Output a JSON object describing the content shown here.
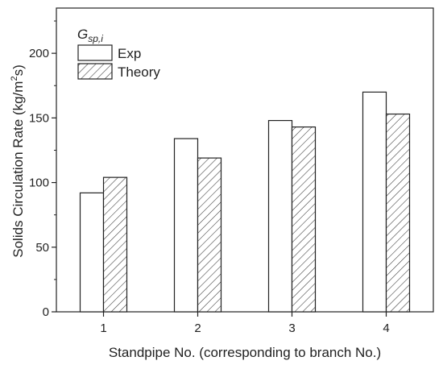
{
  "chart_data": {
    "type": "bar",
    "categories": [
      "1",
      "2",
      "3",
      "4"
    ],
    "series": [
      {
        "name": "Exp",
        "values": [
          92,
          134,
          148,
          170
        ],
        "fill": "#ffffff",
        "pattern": "none"
      },
      {
        "name": "Theory",
        "values": [
          104,
          119,
          143,
          153
        ],
        "fill": "#ffffff",
        "pattern": "diagonal-hatch"
      }
    ],
    "xlabel": "Standpipe No. (corresponding to branch No.)",
    "ylabel_main": "Solids Circulation Rate (kg/m",
    "ylabel_sup": "2",
    "ylabel_end": "s)",
    "ylim": [
      0,
      235
    ],
    "yticks": [
      0,
      50,
      100,
      150,
      200
    ],
    "grid": false,
    "legend": {
      "placement": "top-left",
      "title_main": "G",
      "title_sub": "sp,i"
    },
    "colors": {
      "stroke": "#222222",
      "background": "#ffffff"
    }
  }
}
